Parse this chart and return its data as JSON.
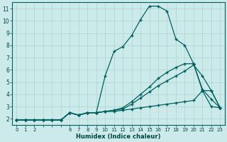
{
  "xlabel": "Humidex (Indice chaleur)",
  "bg_color": "#cceaea",
  "line_color": "#006060",
  "grid_color": "#aad4d4",
  "xlim": [
    -0.5,
    23.5
  ],
  "ylim": [
    1.5,
    11.5
  ],
  "xticks_all": [
    0,
    1,
    2,
    3,
    4,
    5,
    6,
    7,
    8,
    9,
    10,
    11,
    12,
    13,
    14,
    15,
    16,
    17,
    18,
    19,
    20,
    21,
    22,
    23
  ],
  "xtick_labels": [
    "0",
    "1",
    "2",
    "",
    "",
    "",
    "6",
    "7",
    "8",
    "9",
    "10",
    "11",
    "12",
    "13",
    "14",
    "15",
    "16",
    "17",
    "18",
    "19",
    "20",
    "21",
    "22",
    "23"
  ],
  "yticks": [
    2,
    3,
    4,
    5,
    6,
    7,
    8,
    9,
    10,
    11
  ],
  "lines": [
    {
      "x": [
        0,
        1,
        2,
        3,
        4,
        5,
        6,
        7,
        8,
        9,
        10,
        11,
        12,
        13,
        14,
        15,
        16,
        17,
        18,
        19,
        20,
        21,
        22,
        23
      ],
      "y": [
        1.9,
        1.9,
        1.9,
        1.9,
        1.9,
        1.9,
        2.5,
        2.3,
        2.5,
        2.5,
        5.5,
        7.5,
        7.9,
        8.8,
        10.1,
        11.2,
        11.2,
        10.8,
        8.5,
        8.0,
        6.5,
        4.4,
        3.6,
        2.9
      ]
    },
    {
      "x": [
        0,
        1,
        2,
        3,
        4,
        5,
        6,
        7,
        8,
        9,
        10,
        11,
        12,
        13,
        14,
        15,
        16,
        17,
        18,
        19,
        20,
        21,
        22,
        23
      ],
      "y": [
        1.9,
        1.9,
        1.9,
        1.9,
        1.9,
        1.9,
        2.5,
        2.3,
        2.5,
        2.5,
        2.6,
        2.6,
        2.7,
        2.8,
        2.9,
        3.0,
        3.1,
        3.2,
        3.3,
        3.4,
        3.5,
        4.3,
        3.0,
        2.9
      ]
    },
    {
      "x": [
        0,
        1,
        2,
        3,
        4,
        5,
        6,
        7,
        8,
        9,
        10,
        11,
        12,
        13,
        14,
        15,
        16,
        17,
        18,
        19,
        20,
        21,
        22,
        23
      ],
      "y": [
        1.9,
        1.9,
        1.9,
        1.9,
        1.9,
        1.9,
        2.5,
        2.3,
        2.5,
        2.5,
        2.6,
        2.7,
        2.8,
        3.2,
        3.7,
        4.2,
        4.7,
        5.1,
        5.5,
        5.9,
        6.4,
        5.5,
        4.3,
        2.9
      ]
    },
    {
      "x": [
        0,
        1,
        2,
        3,
        4,
        5,
        6,
        7,
        8,
        9,
        10,
        11,
        12,
        13,
        14,
        15,
        16,
        17,
        18,
        19,
        20,
        21,
        22,
        23
      ],
      "y": [
        1.9,
        1.9,
        1.9,
        1.9,
        1.9,
        1.9,
        2.5,
        2.3,
        2.5,
        2.5,
        2.6,
        2.7,
        2.9,
        3.4,
        4.0,
        4.6,
        5.3,
        5.8,
        6.2,
        6.5,
        6.5,
        4.3,
        4.3,
        2.9
      ]
    }
  ]
}
